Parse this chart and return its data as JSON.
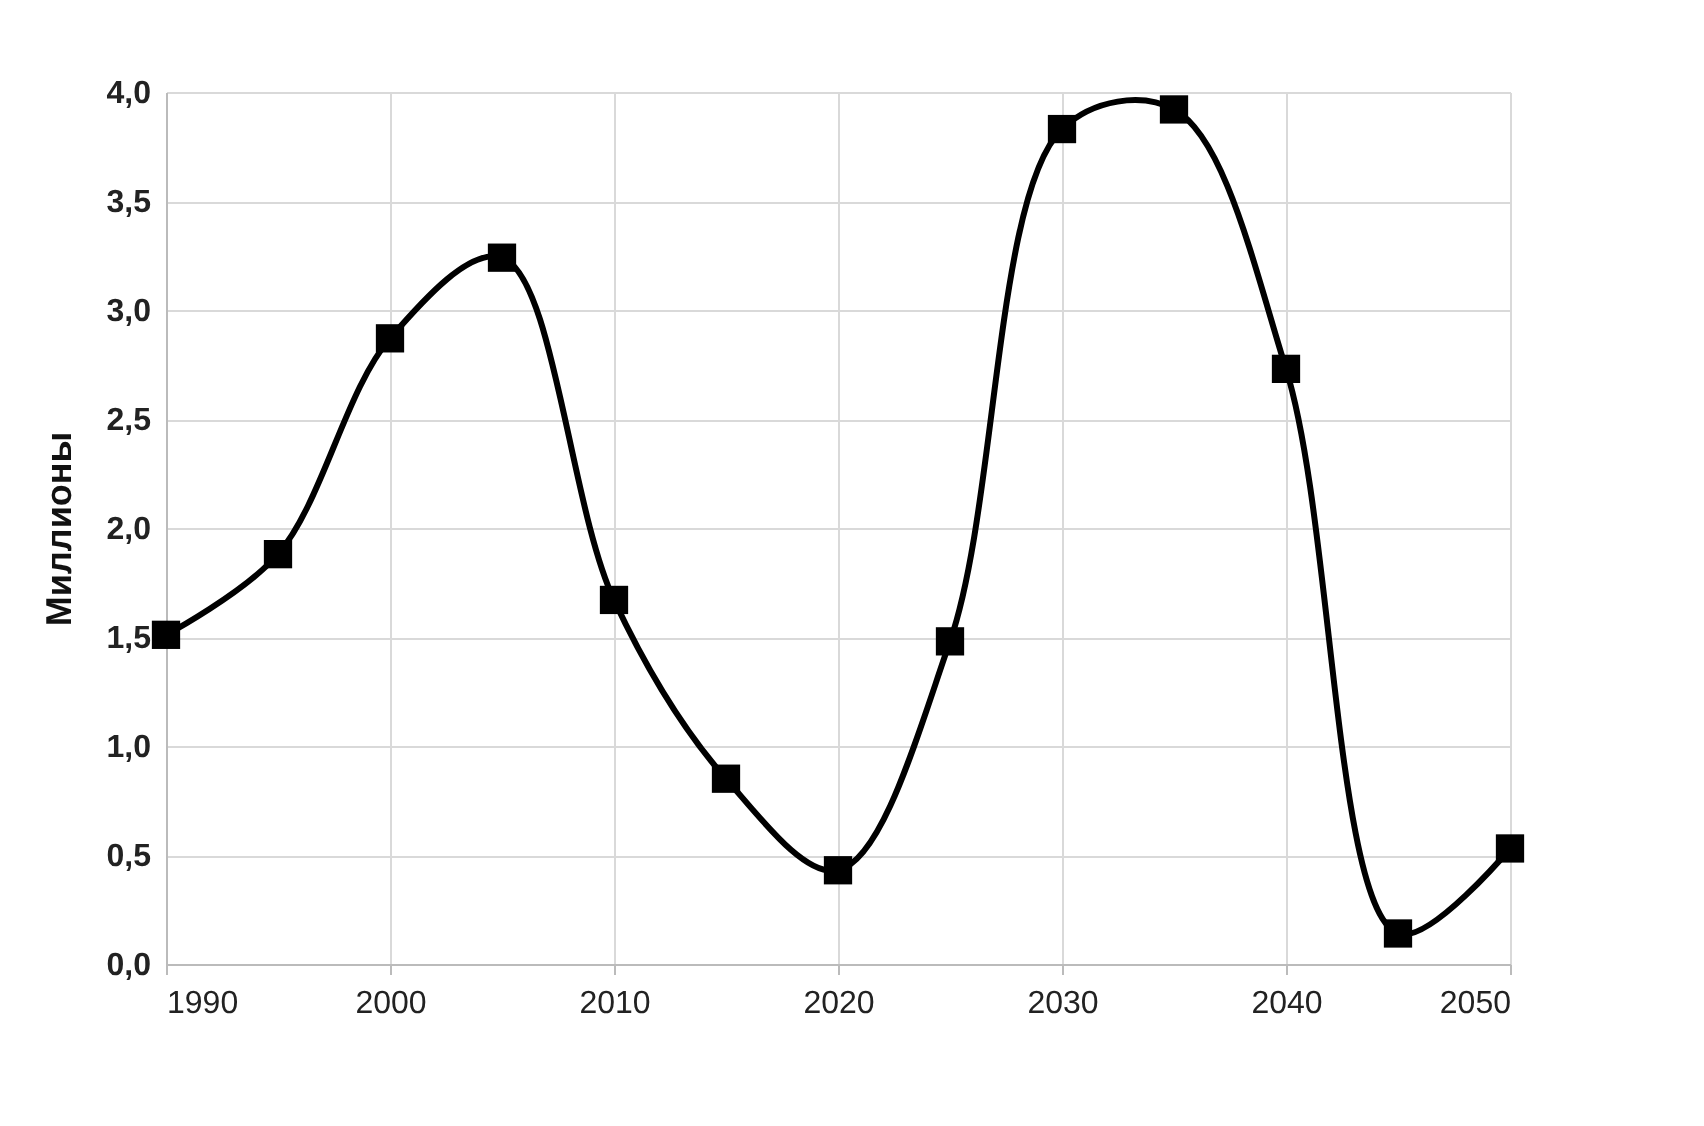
{
  "chart_data": {
    "type": "line",
    "ylabel": "Миллионы",
    "x": [
      1990,
      1995,
      2000,
      2005,
      2010,
      2015,
      2020,
      2025,
      2030,
      2035,
      2040,
      2045,
      2050
    ],
    "series": [
      {
        "color": "#000000",
        "values": [
          1.51,
          1.88,
          2.87,
          3.24,
          1.67,
          0.85,
          0.43,
          1.48,
          3.83,
          3.92,
          2.73,
          0.14,
          0.53
        ]
      }
    ],
    "xlim": [
      1990,
      2050
    ],
    "xticks": [
      1990,
      2000,
      2010,
      2020,
      2030,
      2040,
      2050
    ],
    "ylim": [
      0,
      4
    ],
    "yticks": [
      {
        "value": 0,
        "label": "0,0"
      },
      {
        "value": 0.5,
        "label": "0,5"
      },
      {
        "value": 1,
        "label": "1,0"
      },
      {
        "value": 1.5,
        "label": "1,5"
      },
      {
        "value": 2,
        "label": "2,0"
      },
      {
        "value": 2.5,
        "label": "2,5"
      },
      {
        "value": 3,
        "label": "3,0"
      },
      {
        "value": 3.5,
        "label": "3,5"
      },
      {
        "value": 4,
        "label": "4,0"
      }
    ],
    "grid": true,
    "marker": "square",
    "line_style": "solid"
  }
}
